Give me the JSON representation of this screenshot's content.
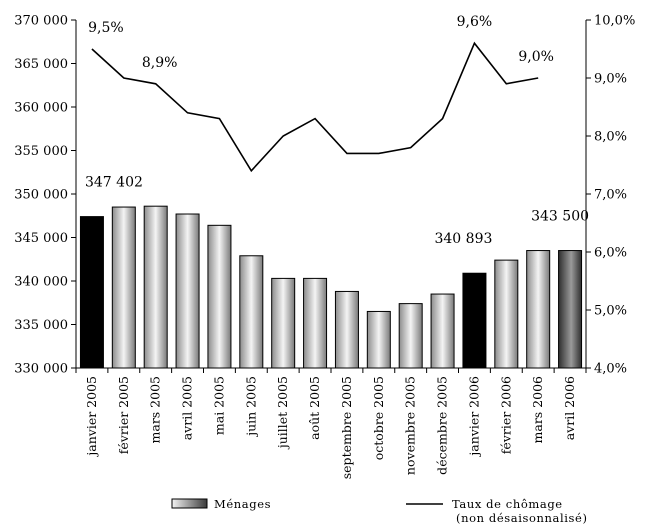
{
  "chart_data": {
    "type": "bar",
    "categories": [
      "janvier 2005",
      "février 2005",
      "mars 2005",
      "avril 2005",
      "mai 2005",
      "juin 2005",
      "juillet 2005",
      "août 2005",
      "septembre 2005",
      "octobre 2005",
      "novembre 2005",
      "décembre 2005",
      "janvier 2006",
      "février 2006",
      "mars 2006",
      "avril 2006"
    ],
    "series": [
      {
        "name": "Ménages",
        "type": "bar",
        "axis": "left",
        "values": [
          347402,
          348500,
          348600,
          347700,
          346400,
          342900,
          340300,
          340300,
          338800,
          336500,
          337400,
          338500,
          340893,
          342400,
          343500,
          343500
        ],
        "highlight": [
          "solid-black",
          "gradient",
          "gradient",
          "gradient",
          "gradient",
          "gradient",
          "gradient",
          "gradient",
          "gradient",
          "gradient",
          "gradient",
          "gradient",
          "solid-black",
          "gradient",
          "gradient",
          "dark-gradient"
        ]
      },
      {
        "name": "Taux de chômage",
        "name_line2": "(non désaisonnalisé)",
        "type": "line",
        "axis": "right",
        "values": [
          9.5,
          9.0,
          8.9,
          8.4,
          8.3,
          7.4,
          8.0,
          8.3,
          7.7,
          7.7,
          7.8,
          8.3,
          9.6,
          8.9,
          9.0,
          null
        ]
      }
    ],
    "y_left": {
      "min": 330000,
      "max": 370000,
      "step": 5000,
      "ticks": [
        "330 000",
        "335 000",
        "340 000",
        "345 000",
        "350 000",
        "355 000",
        "360 000",
        "365 000",
        "370 000"
      ]
    },
    "y_right": {
      "min": 4.0,
      "max": 10.0,
      "step": 1.0,
      "ticks": [
        "4,0%",
        "5,0%",
        "6,0%",
        "7,0%",
        "8,0%",
        "9,0%",
        "10,0%"
      ]
    },
    "bar_labels": [
      {
        "index": 0,
        "text": "347 402"
      },
      {
        "index": 12,
        "text": "340 893"
      },
      {
        "index": 15,
        "text": "343 500"
      }
    ],
    "line_labels": [
      {
        "index": 0,
        "text": "9,5%"
      },
      {
        "index": 2,
        "text": "8,9%"
      },
      {
        "index": 12,
        "text": "9,6%"
      },
      {
        "index": 14,
        "text": "9,0%"
      }
    ],
    "legend": {
      "position": "bottom"
    },
    "grid": false,
    "colors": {
      "bar_solid": "#000000",
      "bar_light": "#f2f2f2",
      "bar_mid": "#8c8c8c",
      "bar_dark": "#3a3a3a",
      "line": "#000000"
    }
  }
}
